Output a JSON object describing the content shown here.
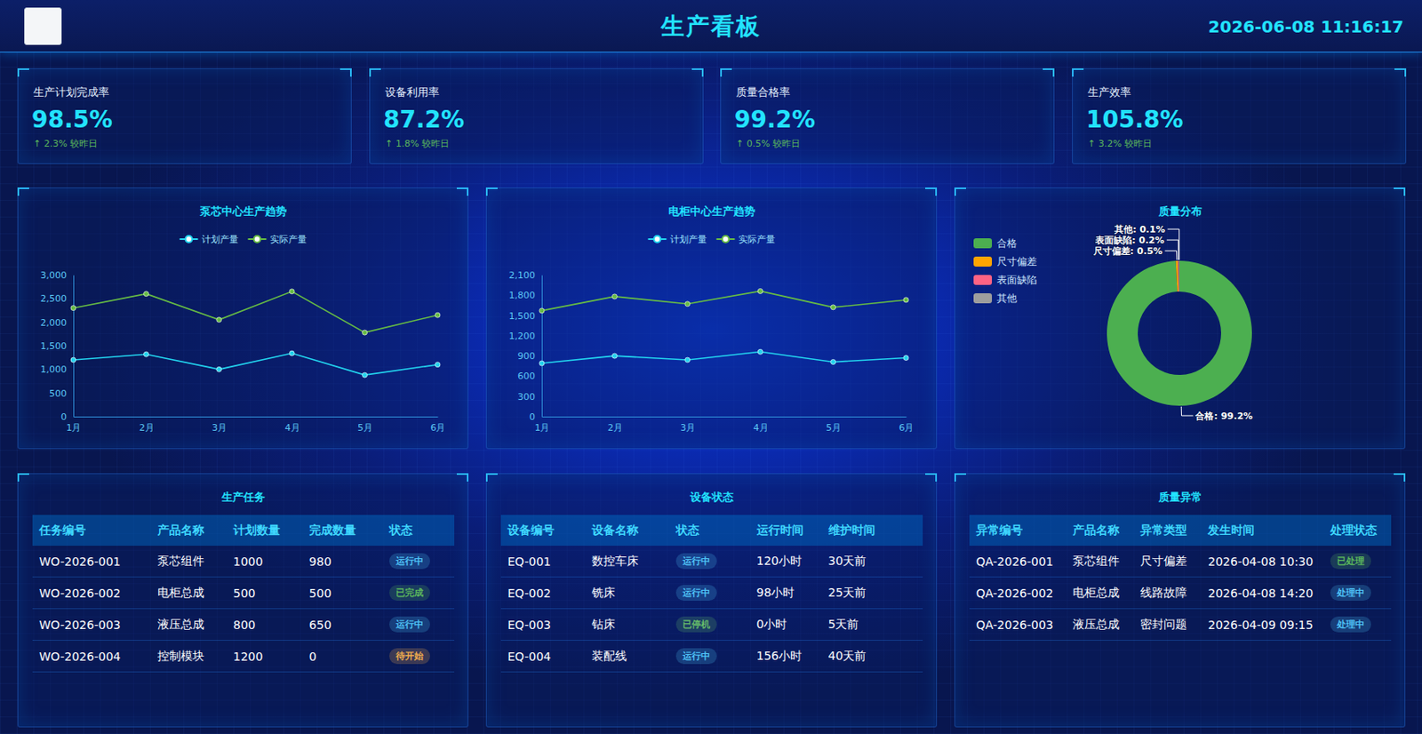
{
  "header": {
    "title": "生产看板",
    "datetime": "2026-06-08 11:16:17"
  },
  "kpis": [
    {
      "label": "生产计划完成率",
      "value": "98.5%",
      "change": "↑ 2.3% 较昨日"
    },
    {
      "label": "设备利用率",
      "value": "87.2%",
      "change": "↑ 1.8% 较昨日"
    },
    {
      "label": "质量合格率",
      "value": "99.2%",
      "change": "↑ 0.5% 较昨日"
    },
    {
      "label": "生产效率",
      "value": "105.8%",
      "change": "↑ 3.2% 较昨日"
    }
  ],
  "chart_data": [
    {
      "type": "line",
      "title": "泵芯中心生产趋势",
      "categories": [
        "1月",
        "2月",
        "3月",
        "4月",
        "5月",
        "6月"
      ],
      "series": [
        {
          "name": "计划产量",
          "color": "#22d3ee",
          "values": [
            1200,
            1320,
            1000,
            1340,
            880,
            1100
          ]
        },
        {
          "name": "实际产量",
          "color": "#66bb44",
          "values": [
            2300,
            2600,
            2050,
            2650,
            1780,
            2150
          ]
        }
      ],
      "ylim": [
        0,
        3000
      ],
      "yticks": [
        0,
        500,
        {
          "value": 1000,
          "label": "1,000"
        },
        {
          "value": 1500,
          "label": "1,500"
        },
        {
          "value": 2000,
          "label": "2,000"
        },
        {
          "value": 2500,
          "label": "2,500"
        },
        {
          "value": 3000,
          "label": "3,000"
        }
      ],
      "grid": false,
      "legend": "top",
      "marker": "circle"
    },
    {
      "type": "line",
      "title": "电柜中心生产趋势",
      "categories": [
        "1月",
        "2月",
        "3月",
        "4月",
        "5月",
        "6月"
      ],
      "series": [
        {
          "name": "计划产量",
          "color": "#22d3ee",
          "values": [
            790,
            900,
            840,
            960,
            810,
            870
          ]
        },
        {
          "name": "实际产量",
          "color": "#66bb44",
          "values": [
            1570,
            1780,
            1670,
            1860,
            1620,
            1730
          ]
        }
      ],
      "ylim": [
        0,
        2100
      ],
      "yticks": [
        0,
        300,
        600,
        900,
        {
          "value": 1200,
          "label": "1,200"
        },
        {
          "value": 1500,
          "label": "1,500"
        },
        {
          "value": 1800,
          "label": "1,800"
        },
        {
          "value": 2100,
          "label": "2,100"
        }
      ],
      "grid": false,
      "legend": "top",
      "marker": "circle"
    },
    {
      "type": "pie",
      "title": "质量分布",
      "categories": [
        "合格",
        "尺寸偏差",
        "表面缺陷",
        "其他"
      ],
      "values": [
        99.2,
        0.5,
        0.2,
        0.1
      ],
      "colors": [
        "#4caf50",
        "#ffa500",
        "#ff6384",
        "#9e9e9e"
      ],
      "value_labels": [
        "合格: 99.2%",
        "尺寸偏差: 0.5%",
        "表面缺陷: 0.2%",
        "其他: 0.1%"
      ],
      "data_labels": true,
      "legend": "top-left"
    }
  ],
  "tables": [
    {
      "title": "生产任务",
      "columns": [
        "任务编号",
        "产品名称",
        "计划数量",
        "完成数量",
        "状态"
      ],
      "rows": [
        [
          "WO-2026-001",
          "泵芯组件",
          1000,
          980,
          "运行中"
        ],
        [
          "WO-2026-002",
          "电柜总成",
          500,
          500,
          "已完成"
        ],
        [
          "WO-2026-003",
          "液压总成",
          800,
          650,
          "运行中"
        ],
        [
          "WO-2026-004",
          "控制模块",
          1200,
          0,
          "待开始"
        ]
      ],
      "status_colors": [
        "#4fc3f7",
        "#5cb85c",
        "#4fc3f7",
        "#f0ad4e"
      ]
    },
    {
      "title": "设备状态",
      "columns": [
        "设备编号",
        "设备名称",
        "状态",
        "运行时间",
        "维护时间"
      ],
      "rows": [
        [
          "EQ-001",
          "数控车床",
          "运行中",
          "120小时",
          "30天前"
        ],
        [
          "EQ-002",
          "铣床",
          "运行中",
          "98小时",
          "25天前"
        ],
        [
          "EQ-003",
          "钻床",
          "已停机",
          "0小时",
          "5天前"
        ],
        [
          "EQ-004",
          "装配线",
          "运行中",
          "156小时",
          "40天前"
        ]
      ],
      "status_colors": [
        "#4fc3f7",
        "#4fc3f7",
        "#66bb6a",
        "#4fc3f7"
      ]
    },
    {
      "title": "质量异常",
      "columns": [
        "异常编号",
        "产品名称",
        "异常类型",
        "发生时间",
        "处理状态"
      ],
      "rows": [
        [
          "QA-2026-001",
          "泵芯组件",
          "尺寸偏差",
          "2026-04-08 10:30",
          "已处理"
        ],
        [
          "QA-2026-002",
          "电柜总成",
          "线路故障",
          "2026-04-08 14:20",
          "处理中"
        ],
        [
          "QA-2026-003",
          "液压总成",
          "密封问题",
          "2026-04-09 09:15",
          "处理中"
        ]
      ],
      "status_colors": [
        "#5cb85c",
        "#4fc3f7",
        "#4fc3f7"
      ]
    }
  ]
}
